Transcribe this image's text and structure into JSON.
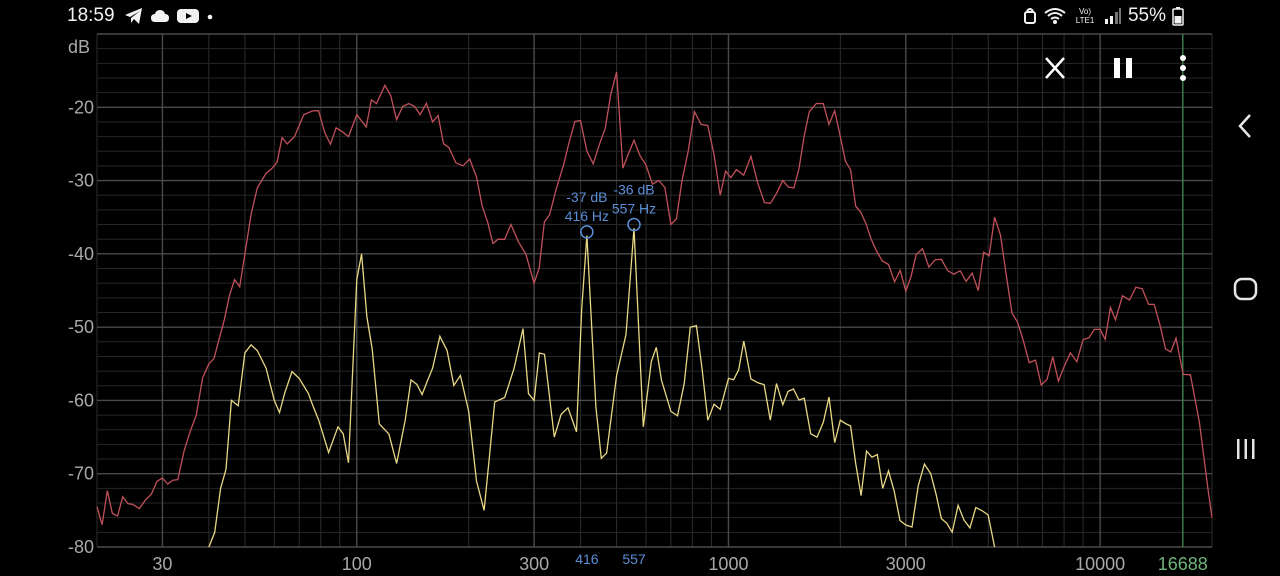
{
  "status": {
    "time": "18:59",
    "battery": "55%",
    "network": "LTE1",
    "volte": "Vo)"
  },
  "controls": {
    "close_icon": "close-icon",
    "pause_icon": "pause-icon",
    "menu_icon": "more-vert-icon"
  },
  "nav": {
    "back_icon": "chevron-left-icon",
    "home_icon": "home-icon",
    "recents_icon": "recents-icon"
  },
  "colors": {
    "red": "#c0505a",
    "yellow": "#e8d884",
    "marker": "#5b8fd6",
    "cursor": "#3a7a4a",
    "cursor_text": "#6fb27a"
  },
  "chart_data": {
    "type": "line",
    "xscale": "log",
    "xlim": [
      20,
      20000
    ],
    "ylim": [
      -80,
      -10
    ],
    "ylabel": "dB",
    "yticks": [
      -20,
      -30,
      -40,
      -50,
      -60,
      -70,
      -80
    ],
    "xticks": [
      "30",
      "100",
      "300",
      "1000",
      "3000",
      "10000"
    ],
    "cursor": {
      "label": "16688",
      "freq": 16688
    },
    "peaks": [
      {
        "db_label": "-37 dB",
        "hz_label": "416 Hz",
        "axis_label": "416",
        "freq": 416,
        "db": -37
      },
      {
        "db_label": "-36 dB",
        "hz_label": "557 Hz",
        "axis_label": "557",
        "freq": 557,
        "db": -36
      }
    ],
    "grid": true,
    "series": [
      {
        "color": "red",
        "points": [
          [
            20,
            -74.5
          ],
          [
            25,
            -74.2
          ],
          [
            27,
            -73.6
          ],
          [
            28,
            -72.8
          ],
          [
            31,
            -71.4
          ],
          [
            33,
            -70.8
          ],
          [
            37,
            -62
          ],
          [
            40,
            -55
          ],
          [
            44,
            -49
          ],
          [
            50,
            -40
          ],
          [
            54,
            -31
          ],
          [
            57,
            -29
          ],
          [
            61,
            -27.5
          ],
          [
            65,
            -25
          ],
          [
            68,
            -24
          ],
          [
            72,
            -21
          ],
          [
            76,
            -20.5
          ],
          [
            82,
            -23.5
          ],
          [
            88,
            -22.8
          ],
          [
            95,
            -24
          ],
          [
            100,
            -21
          ],
          [
            106,
            -22.7
          ],
          [
            113,
            -19.5
          ],
          [
            119,
            -17
          ],
          [
            128,
            -21.7
          ],
          [
            138,
            -19.5
          ],
          [
            148,
            -21
          ],
          [
            160,
            -22
          ],
          [
            177,
            -25.5
          ],
          [
            193,
            -28
          ],
          [
            210,
            -29.5
          ],
          [
            225,
            -35.7
          ],
          [
            240,
            -38
          ],
          [
            260,
            -36
          ],
          [
            285,
            -40
          ],
          [
            300,
            -44
          ],
          [
            330,
            -34.7
          ],
          [
            360,
            -27.9
          ],
          [
            400,
            -21.8
          ],
          [
            416,
            -26
          ],
          [
            450,
            -25
          ],
          [
            500,
            -15.2
          ],
          [
            520,
            -28.3
          ],
          [
            557,
            -24.5
          ],
          [
            600,
            -27.9
          ],
          [
            650,
            -30
          ],
          [
            700,
            -36
          ],
          [
            750,
            -30
          ],
          [
            810,
            -20.6
          ],
          [
            880,
            -22.5
          ],
          [
            950,
            -32
          ],
          [
            1050,
            -28.5
          ],
          [
            1150,
            -26.7
          ],
          [
            1250,
            -33
          ],
          [
            1400,
            -30
          ],
          [
            1500,
            -31
          ],
          [
            1650,
            -20.6
          ],
          [
            1800,
            -19.5
          ],
          [
            2000,
            -24
          ],
          [
            2200,
            -33.5
          ],
          [
            2500,
            -39.6
          ],
          [
            2800,
            -43.8
          ],
          [
            3000,
            -45.1
          ],
          [
            3200,
            -40.1
          ],
          [
            3600,
            -40.8
          ],
          [
            4200,
            -42.3
          ],
          [
            4700,
            -45
          ],
          [
            5200,
            -35
          ],
          [
            5600,
            -43.1
          ],
          [
            6200,
            -51.7
          ],
          [
            6700,
            -54.5
          ],
          [
            7200,
            -57.1
          ],
          [
            8000,
            -55.4
          ],
          [
            9000,
            -51.7
          ],
          [
            10000,
            -50.3
          ],
          [
            11000,
            -49
          ],
          [
            12000,
            -46.3
          ],
          [
            13500,
            -46.9
          ],
          [
            15000,
            -53
          ],
          [
            16000,
            -51.5
          ],
          [
            17500,
            -56.5
          ],
          [
            18500,
            -63
          ],
          [
            19500,
            -72
          ],
          [
            20000,
            -76
          ]
        ]
      },
      {
        "color": "yellow",
        "points": [
          [
            40,
            -80
          ],
          [
            43,
            -72
          ],
          [
            46,
            -60
          ],
          [
            50,
            -53.5
          ],
          [
            54,
            -53.2
          ],
          [
            57,
            -55.6
          ],
          [
            60,
            -60
          ],
          [
            64,
            -59
          ],
          [
            70,
            -57
          ],
          [
            74,
            -59
          ],
          [
            79,
            -62.7
          ],
          [
            84,
            -67.1
          ],
          [
            89,
            -63.6
          ],
          [
            95,
            -68.5
          ],
          [
            100,
            -43.5
          ],
          [
            103,
            -40
          ],
          [
            110,
            -53
          ],
          [
            115,
            -63.2
          ],
          [
            122,
            -64.6
          ],
          [
            128,
            -68.6
          ],
          [
            135,
            -62.7
          ],
          [
            145,
            -57.8
          ],
          [
            160,
            -55.6
          ],
          [
            175,
            -53.2
          ],
          [
            190,
            -56.6
          ],
          [
            200,
            -61.5
          ],
          [
            210,
            -71
          ],
          [
            220,
            -75
          ],
          [
            235,
            -60.2
          ],
          [
            250,
            -59.6
          ],
          [
            265,
            -55.6
          ],
          [
            280,
            -50.2
          ],
          [
            300,
            -60
          ],
          [
            320,
            -53.7
          ],
          [
            340,
            -65
          ],
          [
            370,
            -61
          ],
          [
            390,
            -64.3
          ],
          [
            416,
            -37.5
          ],
          [
            440,
            -60.9
          ],
          [
            470,
            -67.2
          ],
          [
            500,
            -56.6
          ],
          [
            530,
            -51
          ],
          [
            557,
            -36.5
          ],
          [
            590,
            -63.6
          ],
          [
            620,
            -54.7
          ],
          [
            660,
            -57.2
          ],
          [
            700,
            -61.5
          ],
          [
            760,
            -57.7
          ],
          [
            820,
            -49.8
          ],
          [
            880,
            -62.7
          ],
          [
            950,
            -61.2
          ],
          [
            1000,
            -57
          ],
          [
            1100,
            -51.9
          ],
          [
            1200,
            -57.6
          ],
          [
            1400,
            -60.6
          ],
          [
            1600,
            -59.7
          ],
          [
            1800,
            -63
          ],
          [
            2000,
            -62.7
          ],
          [
            2200,
            -68.6
          ],
          [
            2600,
            -72
          ],
          [
            3000,
            -77
          ],
          [
            3500,
            -70
          ],
          [
            4000,
            -78
          ],
          [
            4800,
            -75
          ],
          [
            5200,
            -80
          ]
        ]
      }
    ]
  }
}
